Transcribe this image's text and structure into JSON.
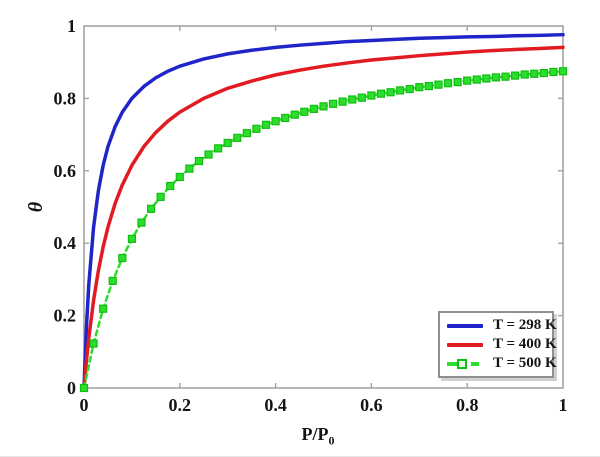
{
  "figure": {
    "background": "#ffffff"
  },
  "axes": {
    "box_color": "#a3a3a3",
    "tick_color": "#a3a3a3",
    "text_color": "#141414",
    "x": {
      "label": "P/P",
      "label_subscript": "0",
      "min": 0,
      "max": 1,
      "tick_values": [
        0,
        0.2,
        0.4,
        0.6,
        0.8,
        1
      ],
      "tick_labels": [
        "0",
        "0.2",
        "0.4",
        "0.6",
        "0.8",
        "1"
      ]
    },
    "y": {
      "label": "θ",
      "min": 0,
      "max": 1,
      "tick_values": [
        0,
        0.2,
        0.4,
        0.6,
        0.8,
        1
      ],
      "tick_labels": [
        "0",
        "0.2",
        "0.4",
        "0.6",
        "0.8",
        "1"
      ]
    }
  },
  "legend": {
    "position": "lower right",
    "border_color": "#8f8f8f"
  },
  "chart_data": {
    "type": "line",
    "title": "",
    "xlabel": "P/P0",
    "ylabel": "θ",
    "xlim": [
      0,
      1
    ],
    "ylim": [
      0,
      1
    ],
    "grid": false,
    "legend_position": "lower right",
    "series": [
      {
        "name": "T = 298 K",
        "color": "#1f25c8",
        "line_style": "solid",
        "line_width": 3.5,
        "marker": "none",
        "x": [
          0,
          0.005,
          0.01,
          0.02,
          0.03,
          0.04,
          0.05,
          0.065,
          0.08,
          0.1,
          0.125,
          0.15,
          0.175,
          0.2,
          0.25,
          0.3,
          0.35,
          0.4,
          0.45,
          0.5,
          0.55,
          0.6,
          0.65,
          0.7,
          0.75,
          0.8,
          0.85,
          0.9,
          0.95,
          1
        ],
        "y": [
          0,
          0.167,
          0.286,
          0.444,
          0.545,
          0.615,
          0.667,
          0.722,
          0.762,
          0.8,
          0.833,
          0.857,
          0.875,
          0.889,
          0.909,
          0.923,
          0.933,
          0.941,
          0.947,
          0.952,
          0.957,
          0.96,
          0.963,
          0.966,
          0.968,
          0.97,
          0.971,
          0.973,
          0.974,
          0.976
        ]
      },
      {
        "name": "T = 400 K",
        "color": "#e11b21",
        "line_style": "solid",
        "line_width": 3.5,
        "marker": "none",
        "x": [
          0,
          0.005,
          0.01,
          0.02,
          0.03,
          0.04,
          0.05,
          0.065,
          0.08,
          0.1,
          0.125,
          0.15,
          0.175,
          0.2,
          0.25,
          0.3,
          0.35,
          0.4,
          0.45,
          0.5,
          0.55,
          0.6,
          0.65,
          0.7,
          0.75,
          0.8,
          0.85,
          0.9,
          0.95,
          1
        ],
        "y": [
          0,
          0.074,
          0.138,
          0.242,
          0.324,
          0.39,
          0.444,
          0.51,
          0.561,
          0.615,
          0.667,
          0.706,
          0.737,
          0.762,
          0.8,
          0.828,
          0.848,
          0.865,
          0.878,
          0.889,
          0.898,
          0.906,
          0.912,
          0.918,
          0.923,
          0.928,
          0.932,
          0.935,
          0.938,
          0.941
        ]
      },
      {
        "name": "T = 500 K",
        "color": "#2ddd2d",
        "marker_edge_color": "#0fbf0f",
        "line_style": "dashed",
        "line_width": 2.5,
        "marker": "square",
        "marker_size": 7,
        "x": [
          0,
          0.02,
          0.04,
          0.06,
          0.08,
          0.1,
          0.12,
          0.14,
          0.16,
          0.18,
          0.2,
          0.22,
          0.24,
          0.26,
          0.28,
          0.3,
          0.32,
          0.34,
          0.36,
          0.38,
          0.4,
          0.42,
          0.44,
          0.46,
          0.48,
          0.5,
          0.52,
          0.54,
          0.56,
          0.58,
          0.6,
          0.62,
          0.64,
          0.66,
          0.68,
          0.7,
          0.72,
          0.74,
          0.76,
          0.78,
          0.8,
          0.82,
          0.84,
          0.86,
          0.88,
          0.9,
          0.92,
          0.94,
          0.96,
          0.98,
          1
        ],
        "y": [
          0,
          0.123,
          0.219,
          0.296,
          0.359,
          0.412,
          0.457,
          0.495,
          0.528,
          0.558,
          0.583,
          0.606,
          0.627,
          0.645,
          0.662,
          0.677,
          0.691,
          0.704,
          0.716,
          0.727,
          0.737,
          0.746,
          0.755,
          0.763,
          0.771,
          0.778,
          0.785,
          0.791,
          0.797,
          0.802,
          0.808,
          0.813,
          0.817,
          0.822,
          0.826,
          0.831,
          0.834,
          0.838,
          0.842,
          0.845,
          0.849,
          0.852,
          0.855,
          0.858,
          0.86,
          0.863,
          0.866,
          0.868,
          0.87,
          0.873,
          0.875
        ]
      }
    ]
  }
}
